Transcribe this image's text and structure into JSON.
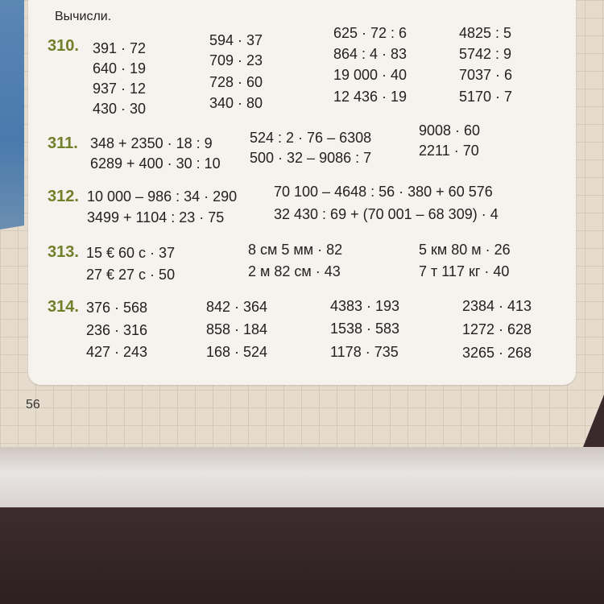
{
  "instruction": "Вычисли.",
  "page_number": "56",
  "exercises": [
    {
      "number": "310.",
      "columns": [
        [
          "391 · 72",
          "640 · 19",
          "937 · 12",
          "430 · 30"
        ],
        [
          "594 · 37",
          "709 · 23",
          "728 · 60",
          "340 · 80"
        ],
        [
          "625 · 72 : 6",
          "864 : 4 · 83",
          "19 000 · 40",
          "12 436 · 19"
        ],
        [
          "4825 : 5",
          "5742 : 9",
          "7037 · 6",
          "5170 · 7"
        ]
      ]
    },
    {
      "number": "311.",
      "columns": [
        [
          "348 + 2350 · 18 : 9",
          "6289 + 400 · 30 : 10"
        ],
        [
          "524 : 2 · 76 – 6308",
          "500 · 32 – 9086 : 7"
        ],
        [
          "9008 · 60",
          "2211 · 70"
        ]
      ]
    },
    {
      "number": "312.",
      "columns": [
        [
          "10 000 – 986 : 34 · 290",
          "3499 + 1104 : 23 · 75"
        ],
        [
          "70 100 – 4648 : 56 · 380 + 60 576",
          "32 430 : 69 + (70 001 – 68 309) · 4"
        ]
      ]
    },
    {
      "number": "313.",
      "columns": [
        [
          "15 € 60 с · 37",
          "27 € 27 с · 50"
        ],
        [
          "8 см 5 мм · 82",
          "2 м 82 см · 43"
        ],
        [
          "5 км 80 м · 26",
          "7 т 117 кг · 40"
        ]
      ]
    },
    {
      "number": "314.",
      "columns": [
        [
          "376 · 568",
          "236 · 316",
          "427 · 243"
        ],
        [
          "842 · 364",
          "858 · 184",
          "168 · 524"
        ],
        [
          "4383 · 193",
          "1538 · 583",
          "1178 · 735"
        ],
        [
          "2384 · 413",
          "1272 · 628",
          "3265 · 268"
        ]
      ]
    }
  ]
}
